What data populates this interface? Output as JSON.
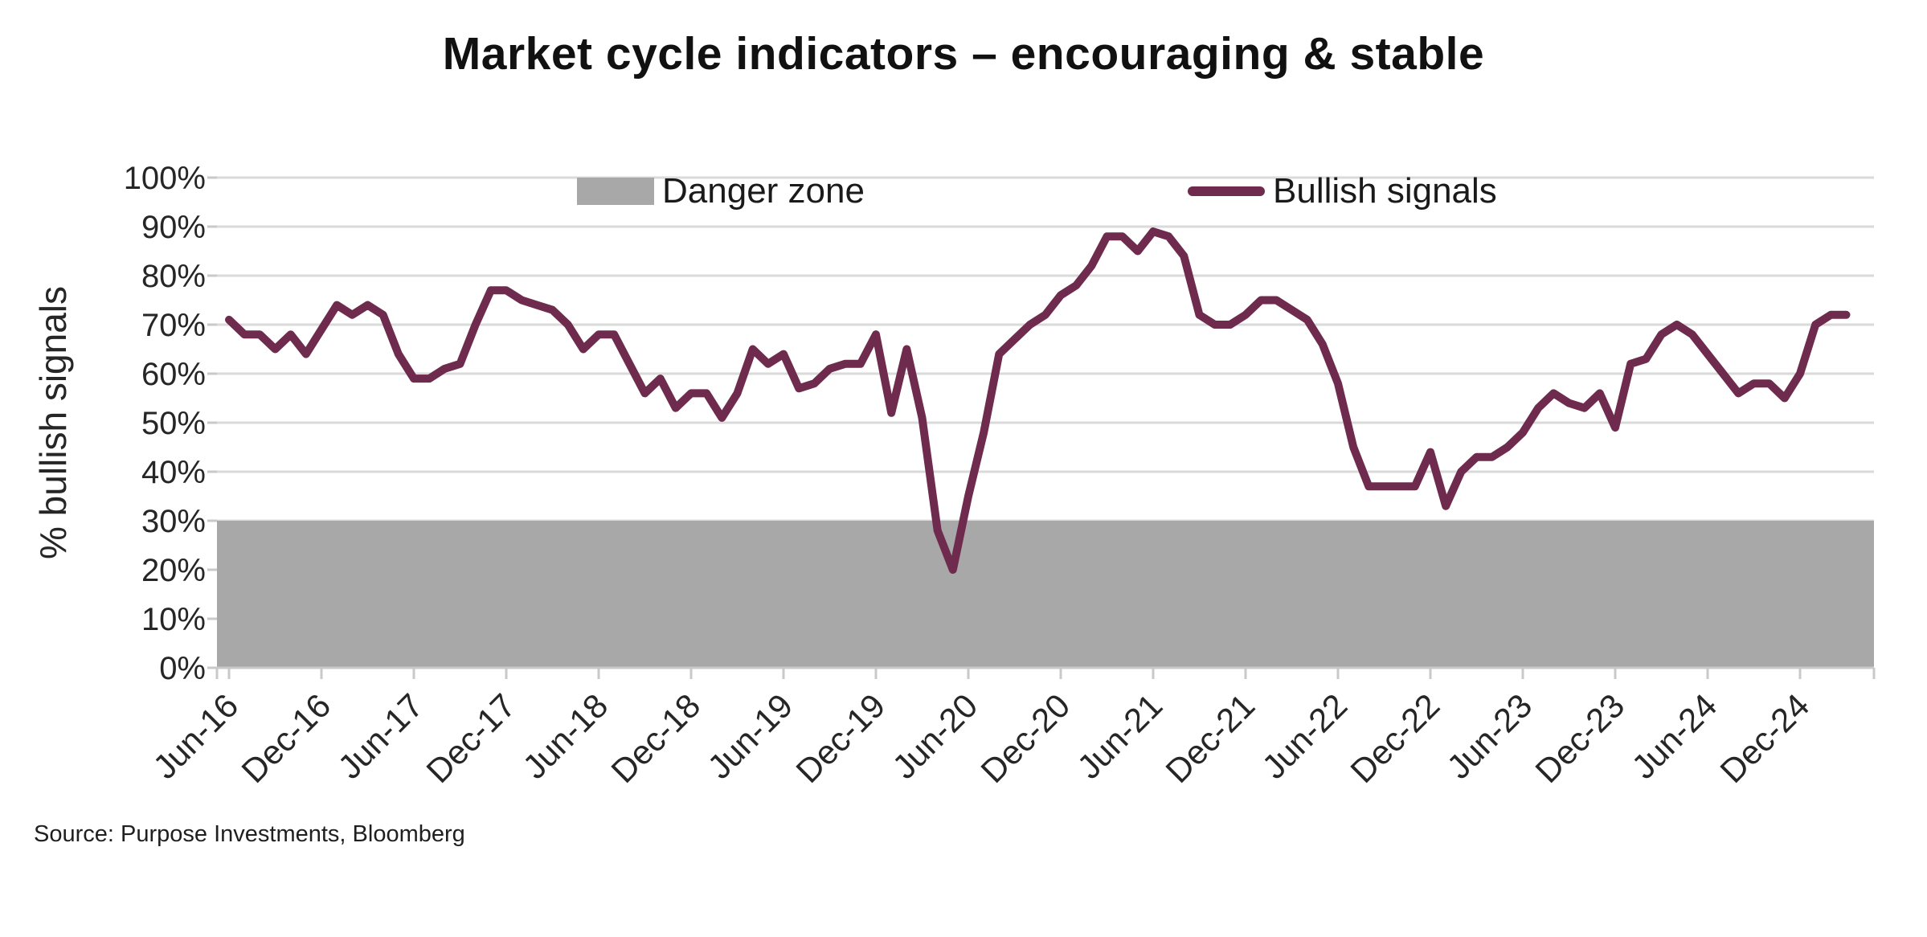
{
  "title": "Market cycle indicators – encouraging & stable",
  "legend": {
    "danger_zone_label": "Danger zone",
    "bullish_signals_label": "Bullish signals"
  },
  "source_note": "Source: Purpose Investments, Bloomberg",
  "colors": {
    "line": "#6F2B4D",
    "danger_zone": "#A8A8A8",
    "gridline": "#DADADA",
    "axis": "#C9C9C9",
    "text": "#262626",
    "title_text": "#111111"
  },
  "y_axis": {
    "title": "% bullish signals",
    "ticks": [
      "0%",
      "10%",
      "20%",
      "30%",
      "40%",
      "50%",
      "60%",
      "70%",
      "80%",
      "90%",
      "100%"
    ],
    "min": 0,
    "max": 100
  },
  "x_axis": {
    "tick_labels": [
      "Jun-16",
      "Dec-16",
      "Jun-17",
      "Dec-17",
      "Jun-18",
      "Dec-18",
      "Jun-19",
      "Dec-19",
      "Jun-20",
      "Dec-20",
      "Jun-21",
      "Dec-21",
      "Jun-22",
      "Dec-22",
      "Jun-23",
      "Dec-23",
      "Jun-24",
      "Dec-24"
    ],
    "tick_month_indices": [
      0,
      6,
      12,
      18,
      24,
      30,
      36,
      42,
      48,
      54,
      60,
      66,
      72,
      78,
      84,
      90,
      96,
      102
    ]
  },
  "chart_data": {
    "type": "line",
    "series_name": "Bullish signals",
    "frequency": "monthly",
    "start_month": "Jun-2016",
    "end_month": "Mar-2025",
    "unit": "% bullish signals",
    "ylim": [
      0,
      100
    ],
    "grid": "horizontal",
    "legend_position": "top-inside",
    "danger_zone_band": [
      0,
      30
    ],
    "values": [
      71,
      68,
      68,
      65,
      68,
      64,
      69,
      74,
      72,
      74,
      72,
      64,
      59,
      59,
      61,
      62,
      70,
      77,
      77,
      75,
      74,
      73,
      70,
      65,
      68,
      68,
      62,
      56,
      59,
      53,
      56,
      56,
      51,
      56,
      65,
      62,
      64,
      57,
      58,
      61,
      62,
      62,
      68,
      52,
      65,
      51,
      28,
      20,
      35,
      48,
      64,
      67,
      70,
      72,
      76,
      78,
      82,
      88,
      88,
      85,
      89,
      88,
      84,
      72,
      70,
      70,
      72,
      75,
      75,
      73,
      71,
      66,
      58,
      45,
      37,
      37,
      37,
      37,
      44,
      33,
      40,
      43,
      43,
      45,
      48,
      53,
      56,
      54,
      53,
      56,
      49,
      62,
      63,
      68,
      70,
      68,
      64,
      60,
      56,
      58,
      58,
      55,
      60,
      70,
      72,
      72
    ]
  }
}
